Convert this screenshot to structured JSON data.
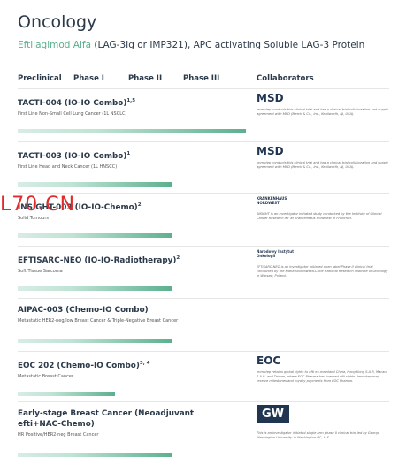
{
  "header": {
    "title": "Oncology",
    "subtitle_drug": "Eftilagimod Alfa",
    "subtitle_rest": " (LAG-3Ig or IMP321), APC activating Soluble LAG-3 Protein"
  },
  "columns": [
    "Preclinical",
    "Phase I",
    "Phase II",
    "Phase III",
    "Collaborators"
  ],
  "watermark": "L70.CN",
  "trials": [
    {
      "name": "TACTI-004 (IO-IO Combo)",
      "sup": "1,5",
      "indication": "First Line Non-Small Cell Lung Cancer (1L NSCLC)",
      "partner": "MSD",
      "note": "Immutep conducts this clinical trial and has a clinical trial collaboration and supply agreement with MSD (Merck & Co., Inc., Kenilworth, NJ, USA)."
    },
    {
      "name": "TACTI-003 (IO-IO Combo)",
      "sup": "1",
      "indication": "First Line Head and Neck Cancer (1L HNSCC)",
      "partner": "MSD",
      "note": "Immutep conducts this clinical trial and has a clinical trial collaboration and supply agreement with MSD (Merck & Co., Inc., Kenilworth, NJ, USA)."
    },
    {
      "name": "INSIGHT-003 (IO-IO-Chemo)",
      "sup": "2",
      "indication": "Solid Tumours",
      "partner": "KRANKENHAUS NORDWEST",
      "note": "INSIGHT is an investigator initiated study conducted by the Institute of Clinical Cancer Research IKF at Krankenhaus Nordwest in Frankfurt."
    },
    {
      "name": "EFTISARC-NEO (IO-IO-Radiotherapy)",
      "sup": "2",
      "indication": "Soft Tissue Sarcoma",
      "partner": "Narodowy Instytut Onkologii",
      "note": "EFTISARC-NEO is an investigator initiated open label Phase II clinical trial conducted by the Maria Sklodowska-Curie National Research Institute of Oncology in Warsaw, Poland."
    },
    {
      "name": "AIPAC-003 (Chemo-IO Combo)",
      "indication": "Metastatic HER2-neg/low Breast Cancer & Triple-Negative Breast Cancer"
    },
    {
      "name": "EOC 202 (Chemo-IO Combo)",
      "sup": "3, 4",
      "indication": "Metastatic Breast Cancer",
      "partner": "EOC",
      "note": "Immutep retains global rights to efti ex-mainland China, Hong Kong S.A.R, Macau S.A.R. and Taiwan, where EOC Pharma has licensed efti rights. Immutep may receive milestones and royalty payments from EOC Pharma."
    },
    {
      "name": "Early-stage Breast Cancer (Neoadjuvant efti+NAC-Chemo)",
      "indication": "HR Positive/HER2-neg Breast Cancer",
      "partner": "GW",
      "note": "This is an investigator initiated single arm phase II clinical trial led by George Washington University in Washington DC, U.S."
    }
  ]
}
